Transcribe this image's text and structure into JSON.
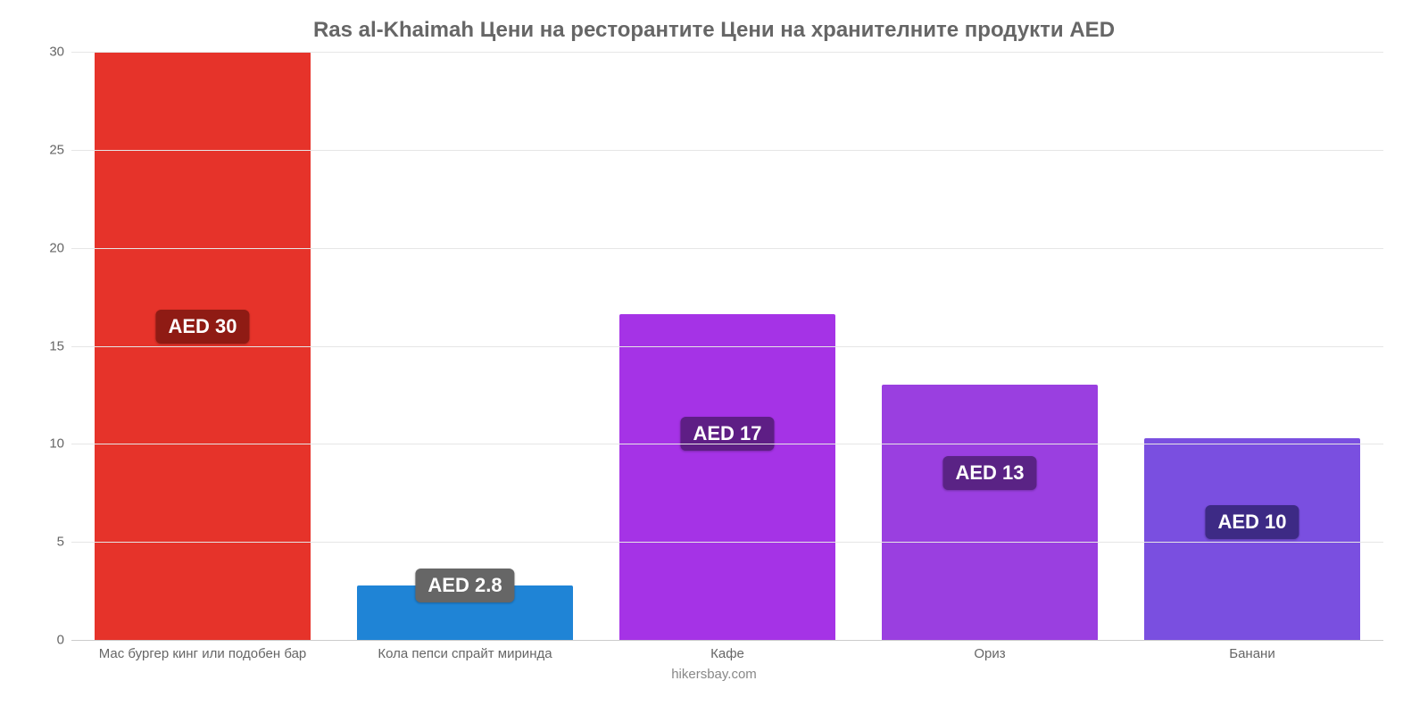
{
  "chart": {
    "type": "bar",
    "title": "Ras al-Khaimah Цени на ресторантите Цени на хранителните продукти AED",
    "title_fontsize": 24,
    "title_color": "#666666",
    "footer": "hikersbay.com",
    "footer_color": "#888888",
    "background_color": "#ffffff",
    "grid_color": "#e6e6e6",
    "axis_color": "#cccccc",
    "tick_font_color": "#666666",
    "tick_fontsize": 15,
    "ylim": [
      0,
      30
    ],
    "yticks": [
      0,
      5,
      10,
      15,
      20,
      25,
      30
    ],
    "bar_width_pct": 82,
    "categories": [
      "Мас бургер кинг или подобен бар",
      "Кола пепси спрайт миринда",
      "Кафе",
      "Ориз",
      "Банани"
    ],
    "values": [
      30,
      2.8,
      16.6,
      13,
      10.3
    ],
    "value_labels": [
      "AED 30",
      "AED 2.8",
      "AED 17",
      "AED 13",
      "AED 10"
    ],
    "bar_colors": [
      "#e6332a",
      "#1f84d6",
      "#a533e6",
      "#9a3fe0",
      "#7a4fe0"
    ],
    "label_bg_colors": [
      "#8f1b14",
      "#666666",
      "#5e1e85",
      "#5a2385",
      "#3d2a85"
    ],
    "label_text_color": "#ffffff",
    "label_fontsize": 22,
    "label_y_positions": [
      16,
      2.8,
      10.5,
      8.5,
      6
    ]
  }
}
